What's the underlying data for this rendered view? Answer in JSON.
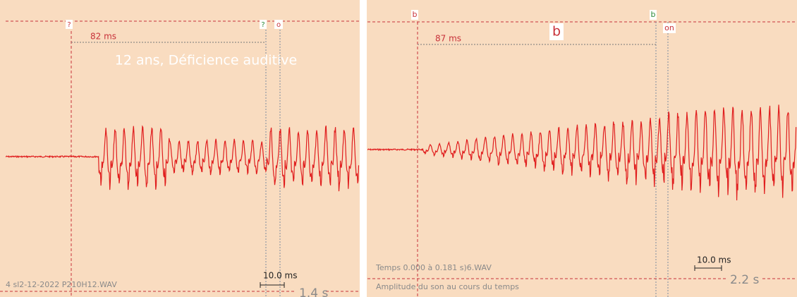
{
  "left_panel": {
    "markers": [
      "?",
      "?",
      "o"
    ],
    "interval_label": "82 ms",
    "title": "12 ans,  Déficience auditive",
    "file_label": "4 sl2-12-2022 P210H12.WAV",
    "scale_label": "10.0 ms",
    "duration_label": "1.4 s"
  },
  "right_panel": {
    "markers": [
      "b",
      "b",
      "on"
    ],
    "interval_label": "87 ms",
    "segment_label": "b",
    "time_label": "Temps 0.000 à 0.181 s)6.WAV",
    "caption": "Amplitude du son au cours du temps",
    "scale_label": "10.0 ms",
    "duration_label": "2.2 s"
  }
}
